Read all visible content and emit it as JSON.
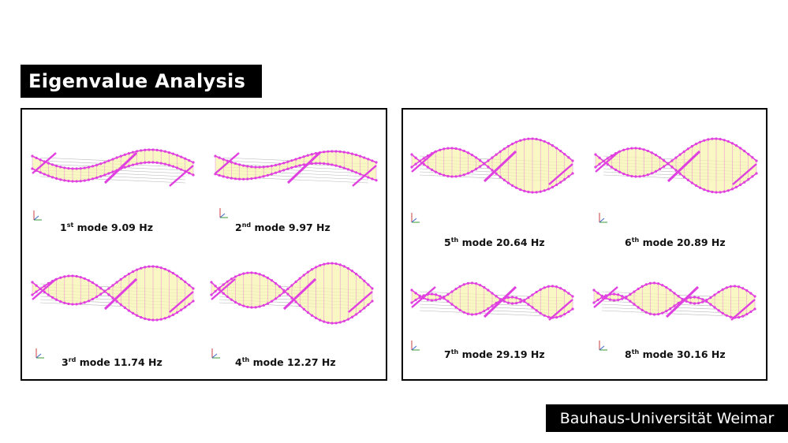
{
  "title": "Eigenvalue Analysis",
  "logo": "Bauhaus-Universität Weimar",
  "colors": {
    "mode_shape": "#e040e0",
    "undeformed": "#b8b8b8",
    "fill": "#f7f4b0"
  },
  "modes": [
    {
      "num": "1",
      "sup": "st",
      "text": "mode 9.09 Hz",
      "panel": "left",
      "shape": "one-wave"
    },
    {
      "num": "2",
      "sup": "nd",
      "text": "mode 9.97 Hz",
      "panel": "left",
      "shape": "two-wave"
    },
    {
      "num": "3",
      "sup": "rd",
      "text": "mode 11.74 Hz",
      "panel": "left",
      "shape": "torsion"
    },
    {
      "num": "4",
      "sup": "th",
      "text": "mode 12.27 Hz",
      "panel": "left",
      "shape": "double-torsion"
    },
    {
      "num": "5",
      "sup": "th",
      "text": "mode 20.64 Hz",
      "panel": "right",
      "shape": "torsion"
    },
    {
      "num": "6",
      "sup": "th",
      "text": "mode 20.89 Hz",
      "panel": "right",
      "shape": "torsion"
    },
    {
      "num": "7",
      "sup": "th",
      "text": "mode 29.19 Hz",
      "panel": "right",
      "shape": "multi-wave"
    },
    {
      "num": "8",
      "sup": "th",
      "text": "mode 30.16 Hz",
      "panel": "right",
      "shape": "multi-wave"
    }
  ]
}
